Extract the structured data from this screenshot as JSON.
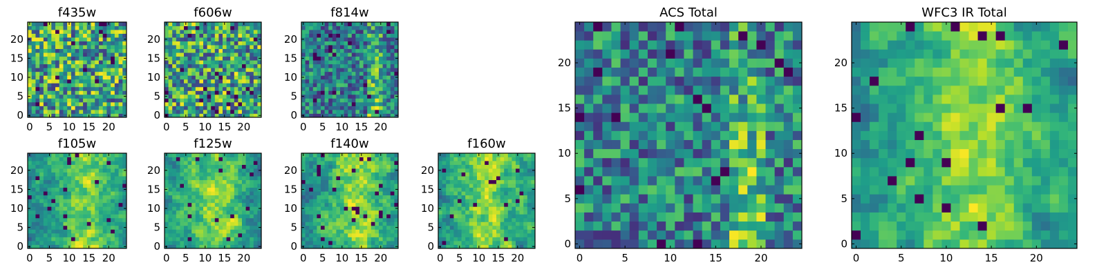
{
  "chart_data": [
    {
      "type": "heatmap",
      "title": "f435w",
      "colormap": "viridis",
      "grid": false,
      "shape": [
        25,
        25
      ],
      "xlim": [
        -0.5,
        24.5
      ],
      "ylim": [
        -0.5,
        24.5
      ],
      "xticks": [
        0,
        5,
        10,
        15,
        20
      ],
      "yticks": [
        0,
        5,
        10,
        15,
        20
      ],
      "seed": 11,
      "smooth": 0,
      "colhot": [],
      "ridge": null
    },
    {
      "type": "heatmap",
      "title": "f606w",
      "colormap": "viridis",
      "grid": false,
      "shape": [
        25,
        25
      ],
      "xlim": [
        -0.5,
        24.5
      ],
      "ylim": [
        -0.5,
        24.5
      ],
      "xticks": [
        0,
        5,
        10,
        15,
        20
      ],
      "yticks": [
        0,
        5,
        10,
        15,
        20
      ],
      "seed": 23,
      "smooth": 0,
      "colhot": [],
      "ridge": null
    },
    {
      "type": "heatmap",
      "title": "f814w",
      "colormap": "viridis",
      "grid": false,
      "shape": [
        25,
        25
      ],
      "xlim": [
        -0.5,
        24.5
      ],
      "ylim": [
        -0.5,
        24.5
      ],
      "xticks": [
        0,
        5,
        10,
        15,
        20
      ],
      "yticks": [
        0,
        5,
        10,
        15,
        20
      ],
      "seed": 37,
      "smooth": 0,
      "colhot": [
        17,
        18,
        19,
        20
      ],
      "ridge": null
    },
    {
      "type": "heatmap",
      "title": "f105w",
      "colormap": "viridis",
      "grid": false,
      "shape": [
        25,
        25
      ],
      "xlim": [
        -0.5,
        24.5
      ],
      "ylim": [
        -0.5,
        24.5
      ],
      "xticks": [
        0,
        5,
        10,
        15,
        20
      ],
      "yticks": [
        0,
        5,
        10,
        15,
        20
      ],
      "seed": 41,
      "smooth": 1,
      "colhot": [],
      "ridge": [
        14,
        2
      ]
    },
    {
      "type": "heatmap",
      "title": "f125w",
      "colormap": "viridis",
      "grid": false,
      "shape": [
        25,
        25
      ],
      "xlim": [
        -0.5,
        24.5
      ],
      "ylim": [
        -0.5,
        24.5
      ],
      "xticks": [
        0,
        5,
        10,
        15,
        20
      ],
      "yticks": [
        0,
        5,
        10,
        15,
        20
      ],
      "seed": 53,
      "smooth": 1,
      "colhot": [],
      "ridge": [
        13,
        3
      ]
    },
    {
      "type": "heatmap",
      "title": "f140w",
      "colormap": "viridis",
      "grid": false,
      "shape": [
        25,
        25
      ],
      "xlim": [
        -0.5,
        24.5
      ],
      "ylim": [
        -0.5,
        24.5
      ],
      "xticks": [
        0,
        5,
        10,
        15,
        20
      ],
      "yticks": [
        0,
        5,
        10,
        15,
        20
      ],
      "seed": 67,
      "smooth": 1,
      "colhot": [],
      "ridge": [
        14,
        3
      ]
    },
    {
      "type": "heatmap",
      "title": "f160w",
      "colormap": "viridis",
      "grid": false,
      "shape": [
        25,
        25
      ],
      "xlim": [
        -0.5,
        24.5
      ],
      "ylim": [
        -0.5,
        24.5
      ],
      "xticks": [
        0,
        5,
        10,
        15,
        20
      ],
      "yticks": [
        0,
        5,
        10,
        15,
        20
      ],
      "seed": 79,
      "smooth": 1,
      "colhot": [],
      "ridge": [
        12,
        3
      ]
    },
    {
      "type": "heatmap",
      "title": "ACS Total",
      "colormap": "viridis",
      "grid": false,
      "shape": [
        25,
        25
      ],
      "xlim": [
        -0.5,
        24.5
      ],
      "ylim": [
        -0.5,
        24.5
      ],
      "xticks": [
        0,
        5,
        10,
        15,
        20
      ],
      "yticks": [
        0,
        5,
        10,
        15,
        20
      ],
      "seed": 97,
      "smooth": 0,
      "colhot": [
        17,
        18,
        19,
        20
      ],
      "ridge": null
    },
    {
      "type": "heatmap",
      "title": "WFC3 IR Total",
      "colormap": "viridis",
      "grid": false,
      "shape": [
        25,
        25
      ],
      "xlim": [
        -0.5,
        24.5
      ],
      "ylim": [
        -0.5,
        24.5
      ],
      "xticks": [
        0,
        5,
        10,
        15,
        20
      ],
      "yticks": [
        0,
        5,
        10,
        15,
        20
      ],
      "seed": 113,
      "smooth": 1,
      "colhot": [],
      "ridge": [
        13,
        3
      ]
    }
  ]
}
